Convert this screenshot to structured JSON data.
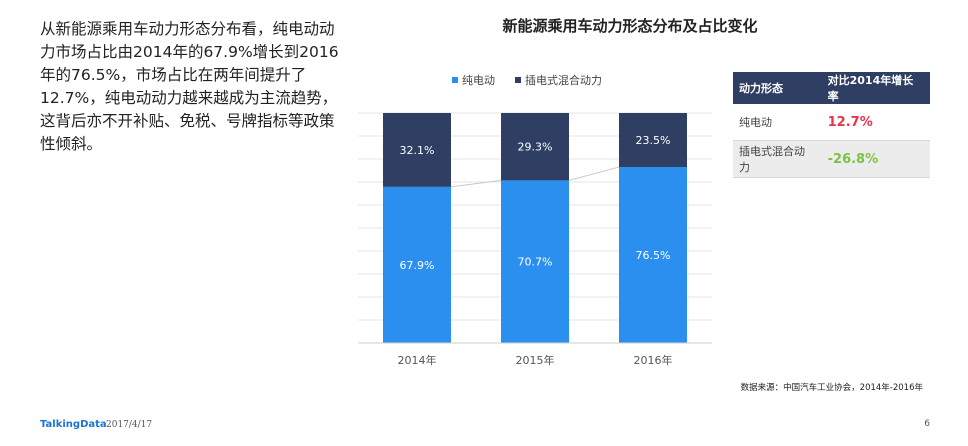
{
  "intro_text": "从新能源乘用车动力形态分布看，纯电动动力市场占比由2014年的67.9%增长到2016年的76.5%，市场占比在两年间提升了12.7%，纯电动动力越来越成为主流趋势，这背后亦不开补贴、免税、号牌指标等政策性倾斜。",
  "chart_data": {
    "type": "bar",
    "stacked": true,
    "title": "新能源乘用车动力形态分布及占比变化",
    "categories": [
      "2014年",
      "2015年",
      "2016年"
    ],
    "series": [
      {
        "name": "纯电动",
        "values": [
          67.9,
          70.7,
          76.5
        ],
        "labels": [
          "67.9%",
          "70.7%",
          "76.5%"
        ],
        "color": "#2b8ff0"
      },
      {
        "name": "插电式混合动力",
        "values": [
          32.1,
          29.3,
          23.5
        ],
        "labels": [
          "32.1%",
          "29.3%",
          "23.5%"
        ],
        "color": "#2e3f63"
      }
    ],
    "ylim": [
      0,
      100
    ],
    "grid": true,
    "legend": "top"
  },
  "table": {
    "headers": [
      "动力形态",
      "对比2014年增长率"
    ],
    "rows": [
      {
        "label": "纯电动",
        "value": "12.7%",
        "color": "#e8334a"
      },
      {
        "label": "插电式混合动力",
        "value": "-26.8%",
        "color": "#7cc242"
      }
    ]
  },
  "source": "数据来源：中国汽车工业协会，2014年-2016年",
  "footer": {
    "logo": "TalkingData",
    "date": "2017/4/17",
    "page": "6"
  }
}
